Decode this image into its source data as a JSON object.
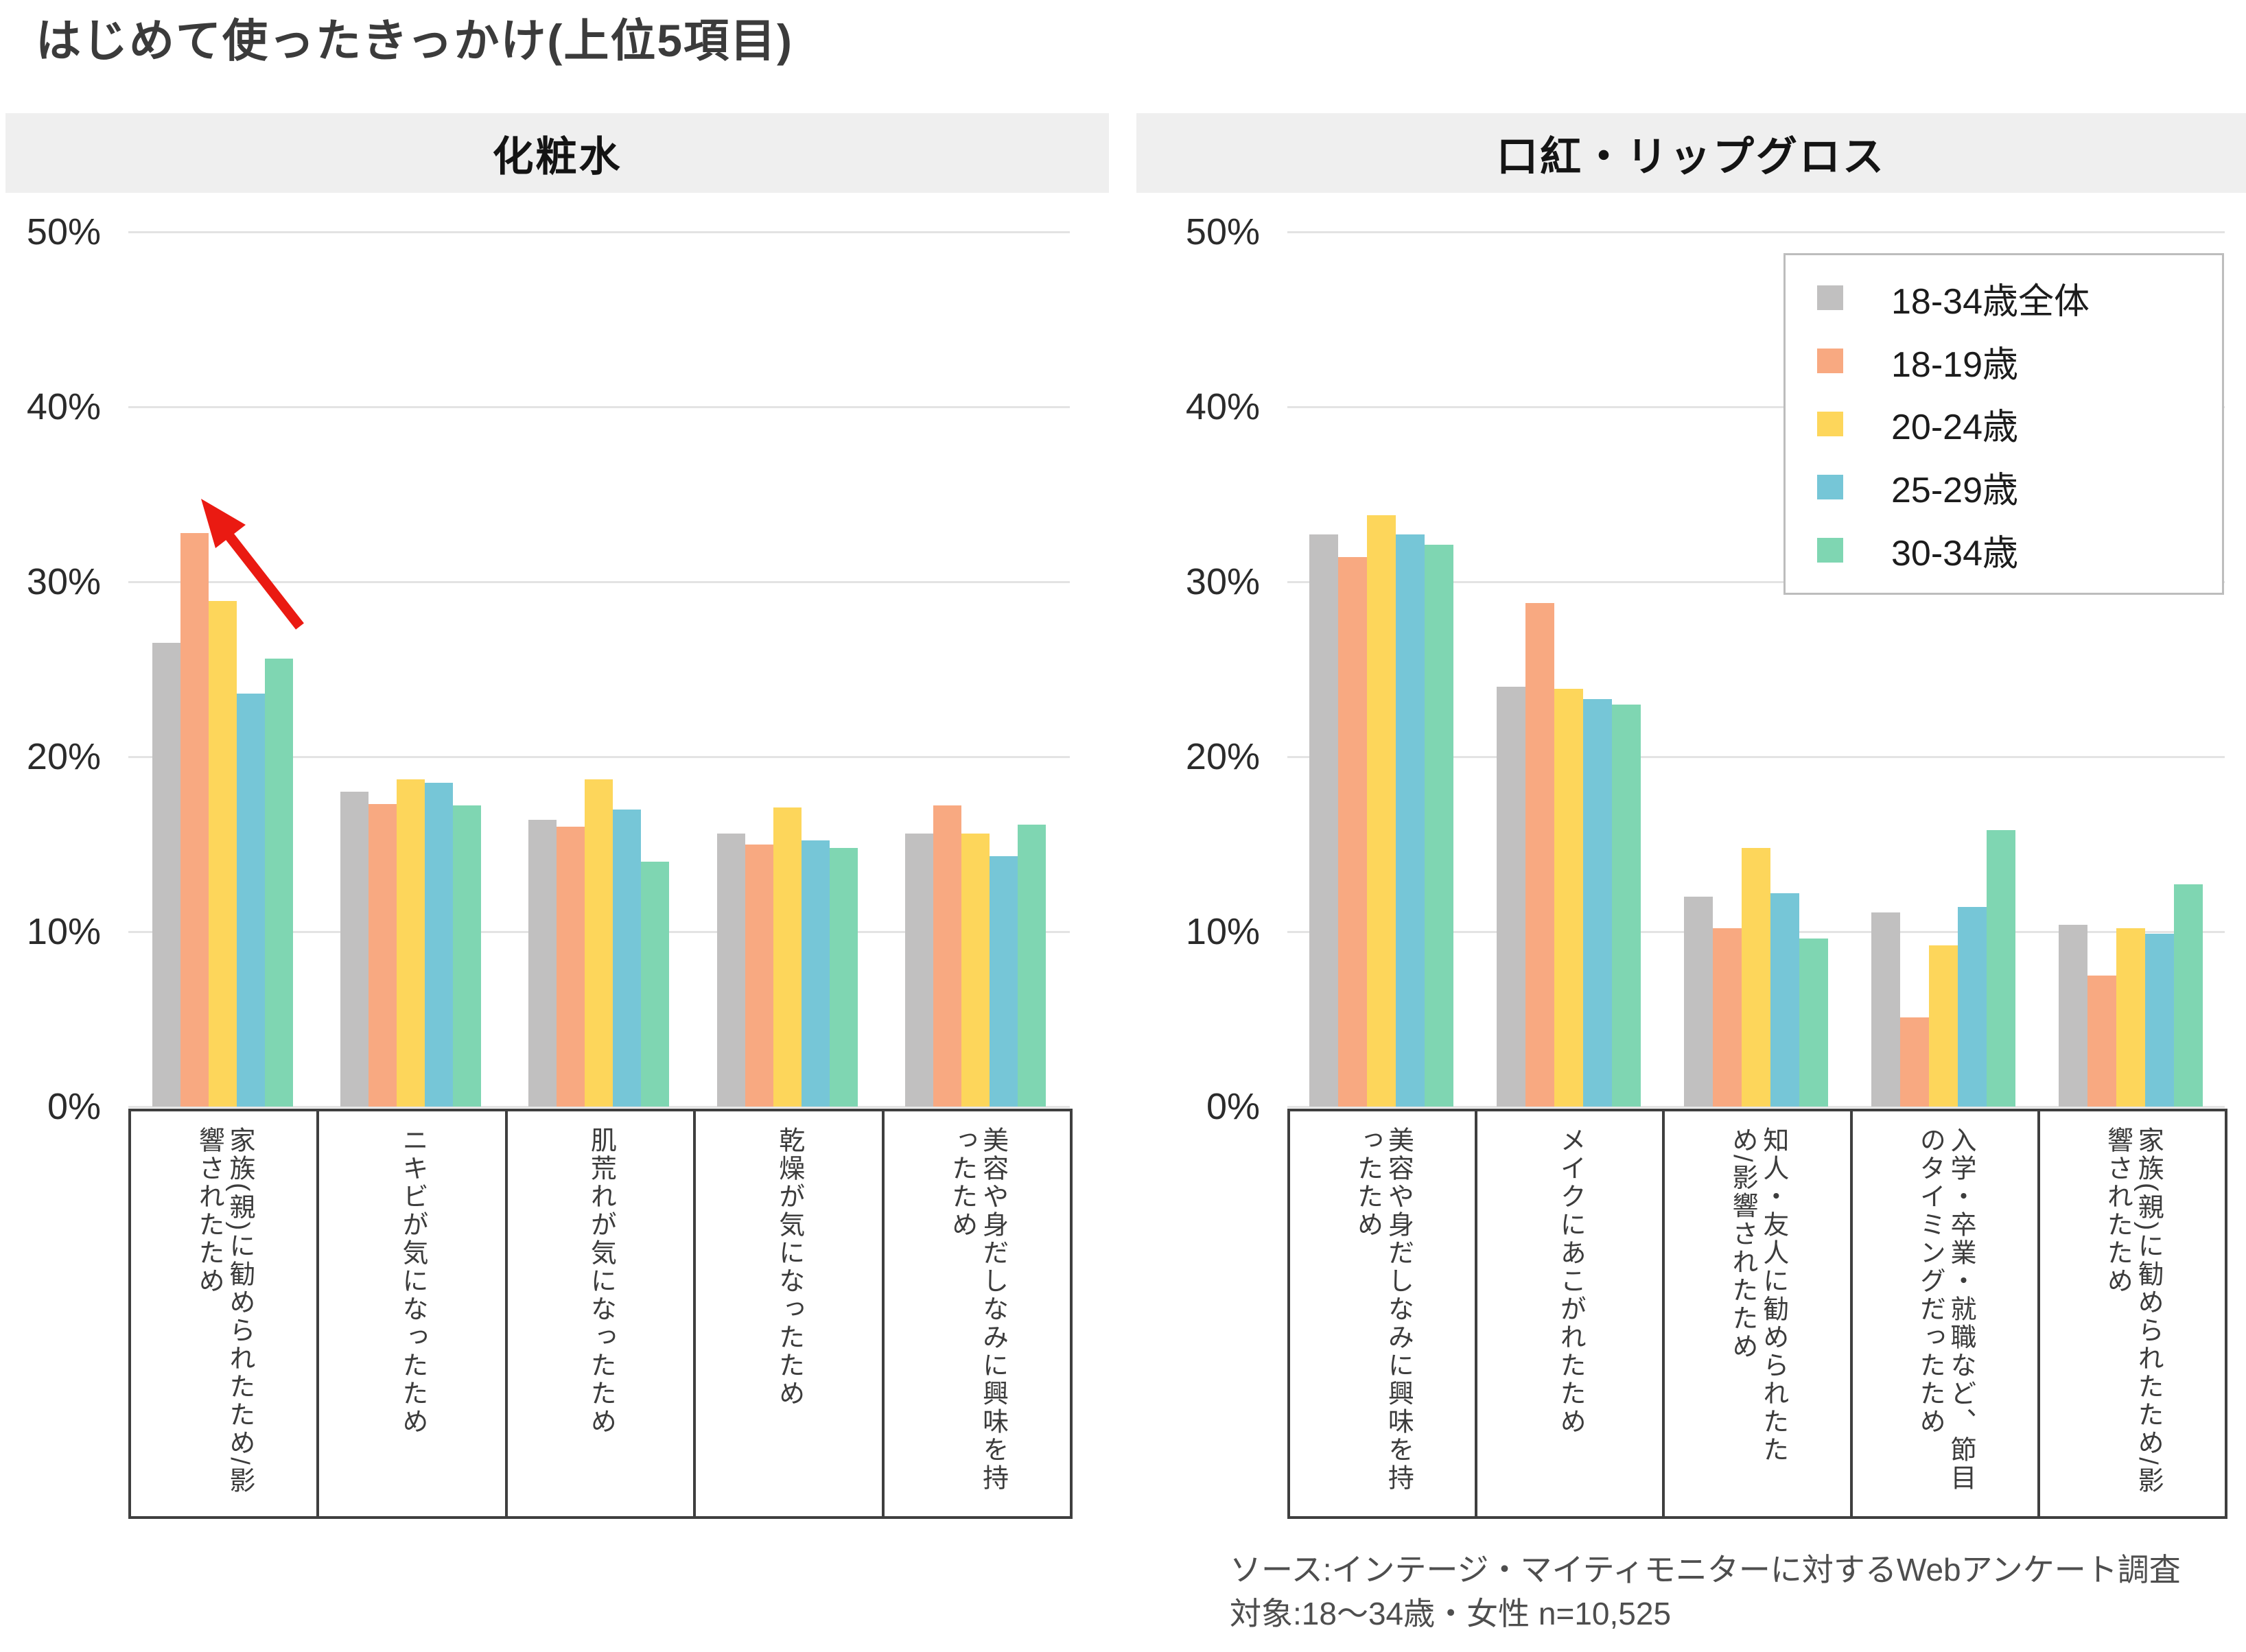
{
  "title": "はじめて使ったきっかけ(上位5項目)",
  "colors": {
    "series_gray": "#c1c0c0",
    "series_salmon": "#f8a981",
    "series_yellow": "#fdd65b",
    "series_blue": "#76c6d7",
    "series_green": "#7fd6b2",
    "gridline": "#e3e3e3",
    "header_band": "#efefef",
    "category_box_border": "#3f3f3f",
    "arrow_red": "#ea1a12"
  },
  "legend": {
    "items": [
      {
        "label": "18-34歳全体",
        "color": "#c1c0c0"
      },
      {
        "label": "18-19歳",
        "color": "#f8a981"
      },
      {
        "label": "20-24歳",
        "color": "#fdd65b"
      },
      {
        "label": "25-29歳",
        "color": "#76c6d7"
      },
      {
        "label": "30-34歳",
        "color": "#7fd6b2"
      }
    ]
  },
  "footer": {
    "line1": "ソース:インテージ・マイティモニターに対するWebアンケート調査",
    "line2": "対象:18〜34歳・女性 n=10,525"
  },
  "chart_data": [
    {
      "type": "bar",
      "title": "化粧水",
      "ylabel": "%",
      "ylim": [
        0,
        50
      ],
      "yticks": [
        "0%",
        "10%",
        "20%",
        "30%",
        "40%",
        "50%"
      ],
      "grid": true,
      "categories": [
        "家族(親)に勧められたため/影響されたため",
        "ニキビが気になったため",
        "肌荒れが気になったため",
        "乾燥が気になったため",
        "美容や身だしなみに興味を持ったため"
      ],
      "series": [
        {
          "name": "18-34歳全体",
          "color": "#c1c0c0",
          "values": [
            26.5,
            18.0,
            16.4,
            15.6,
            15.6
          ]
        },
        {
          "name": "18-19歳",
          "color": "#f8a981",
          "values": [
            32.8,
            17.3,
            16.0,
            15.0,
            17.2
          ]
        },
        {
          "name": "20-24歳",
          "color": "#fdd65b",
          "values": [
            28.9,
            18.7,
            18.7,
            17.1,
            15.6
          ]
        },
        {
          "name": "25-29歳",
          "color": "#76c6d7",
          "values": [
            23.6,
            18.5,
            17.0,
            15.2,
            14.3
          ]
        },
        {
          "name": "30-34歳",
          "color": "#7fd6b2",
          "values": [
            25.6,
            17.2,
            14.0,
            14.8,
            16.1
          ]
        }
      ],
      "annotation": {
        "type": "arrow",
        "color": "#ea1a12",
        "points_to": "18-19歳の突出した値"
      }
    },
    {
      "type": "bar",
      "title": "口紅・リップグロス",
      "ylabel": "%",
      "ylim": [
        0,
        50
      ],
      "yticks": [
        "0%",
        "10%",
        "20%",
        "30%",
        "40%",
        "50%"
      ],
      "grid": true,
      "legend_position": "top-right",
      "categories": [
        "美容や身だしなみに興味を持ったため",
        "メイクにあこがれたため",
        "知人・友人に勧められたため/影響されたため",
        "入学・卒業・就職など、節目のタイミングだったため",
        "家族(親)に勧められたため/影響されたため"
      ],
      "series": [
        {
          "name": "18-34歳全体",
          "color": "#c1c0c0",
          "values": [
            32.7,
            24.0,
            12.0,
            11.1,
            10.4
          ]
        },
        {
          "name": "18-19歳",
          "color": "#f8a981",
          "values": [
            31.4,
            28.8,
            10.2,
            5.1,
            7.5
          ]
        },
        {
          "name": "20-24歳",
          "color": "#fdd65b",
          "values": [
            33.8,
            23.9,
            14.8,
            9.2,
            10.2
          ]
        },
        {
          "name": "25-29歳",
          "color": "#76c6d7",
          "values": [
            32.7,
            23.3,
            12.2,
            11.4,
            9.9
          ]
        },
        {
          "name": "30-34歳",
          "color": "#7fd6b2",
          "values": [
            32.1,
            23.0,
            9.6,
            15.8,
            12.7
          ]
        }
      ]
    }
  ]
}
